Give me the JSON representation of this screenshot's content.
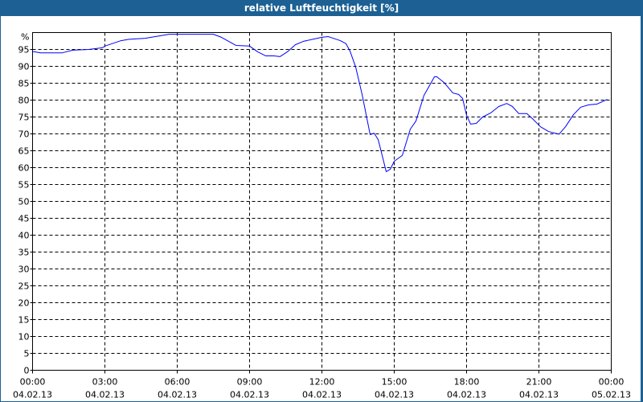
{
  "title": "relative Luftfeuchtigkeit [%]",
  "colors": {
    "titlebar": "#1d6194",
    "line": "#0000ff",
    "grid": "#000000"
  },
  "chart_data": {
    "type": "line",
    "title": "relative Luftfeuchtigkeit [%]",
    "y_unit_label": "%",
    "ylim": [
      0,
      100
    ],
    "y_ticks": [
      0,
      5,
      10,
      15,
      20,
      25,
      30,
      35,
      40,
      45,
      50,
      55,
      60,
      65,
      70,
      75,
      80,
      85,
      90,
      95
    ],
    "x_ticks": [
      {
        "time": "00:00",
        "date": "04.02.13"
      },
      {
        "time": "03:00",
        "date": "04.02.13"
      },
      {
        "time": "06:00",
        "date": "04.02.13"
      },
      {
        "time": "09:00",
        "date": "04.02.13"
      },
      {
        "time": "12:00",
        "date": "04.02.13"
      },
      {
        "time": "15:00",
        "date": "04.02.13"
      },
      {
        "time": "18:00",
        "date": "04.02.13"
      },
      {
        "time": "21:00",
        "date": "04.02.13"
      },
      {
        "time": "00:00",
        "date": "05.02.13"
      }
    ],
    "xlim": [
      "04.02.13 00:00",
      "05.02.13 00:00"
    ],
    "grid": true,
    "series": [
      {
        "points": [
          [
            "00:00",
            94.4
          ],
          [
            "00:20",
            94
          ],
          [
            "01:14",
            94
          ],
          [
            "01:40",
            94.8
          ],
          [
            "02:20",
            95
          ],
          [
            "02:54",
            95.5
          ],
          [
            "03:00",
            96
          ],
          [
            "03:40",
            97.6
          ],
          [
            "04:00",
            98
          ],
          [
            "04:40",
            98.3
          ],
          [
            "05:40",
            99.5
          ],
          [
            "07:30",
            99.5
          ],
          [
            "07:50",
            98.6
          ],
          [
            "08:26",
            96.2
          ],
          [
            "09:00",
            96
          ],
          [
            "09:20",
            94.3
          ],
          [
            "09:40",
            93.1
          ],
          [
            "10:00",
            93.1
          ],
          [
            "10:16",
            92.9
          ],
          [
            "10:34",
            94.3
          ],
          [
            "10:54",
            96.4
          ],
          [
            "11:14",
            97.4
          ],
          [
            "12:00",
            98.6
          ],
          [
            "12:16",
            98.8
          ],
          [
            "12:46",
            97.6
          ],
          [
            "13:00",
            96.7
          ],
          [
            "13:10",
            94.5
          ],
          [
            "13:24",
            89.8
          ],
          [
            "13:40",
            81.7
          ],
          [
            "14:00",
            69.8
          ],
          [
            "14:10",
            70.2
          ],
          [
            "14:20",
            68.3
          ],
          [
            "14:30",
            63.6
          ],
          [
            "14:40",
            58.8
          ],
          [
            "14:50",
            59.5
          ],
          [
            "15:00",
            61.9
          ],
          [
            "15:20",
            63.6
          ],
          [
            "15:40",
            71.4
          ],
          [
            "15:54",
            73.8
          ],
          [
            "16:14",
            81.4
          ],
          [
            "16:40",
            86.9
          ],
          [
            "16:46",
            86.9
          ],
          [
            "17:04",
            85.2
          ],
          [
            "17:26",
            82.1
          ],
          [
            "17:40",
            81.7
          ],
          [
            "17:50",
            80.5
          ],
          [
            "18:00",
            75.5
          ],
          [
            "18:10",
            72.9
          ],
          [
            "18:24",
            73.1
          ],
          [
            "18:40",
            75
          ],
          [
            "19:00",
            76.2
          ],
          [
            "19:20",
            78.1
          ],
          [
            "19:40",
            79
          ],
          [
            "19:54",
            78.1
          ],
          [
            "20:10",
            76
          ],
          [
            "20:30",
            76
          ],
          [
            "20:44",
            74.5
          ],
          [
            "21:04",
            72.1
          ],
          [
            "21:24",
            70.7
          ],
          [
            "21:50",
            69.9
          ],
          [
            "22:06",
            72.1
          ],
          [
            "22:26",
            75.7
          ],
          [
            "22:44",
            77.9
          ],
          [
            "23:04",
            78.6
          ],
          [
            "23:24",
            78.8
          ],
          [
            "23:50",
            80.2
          ]
        ]
      }
    ]
  }
}
